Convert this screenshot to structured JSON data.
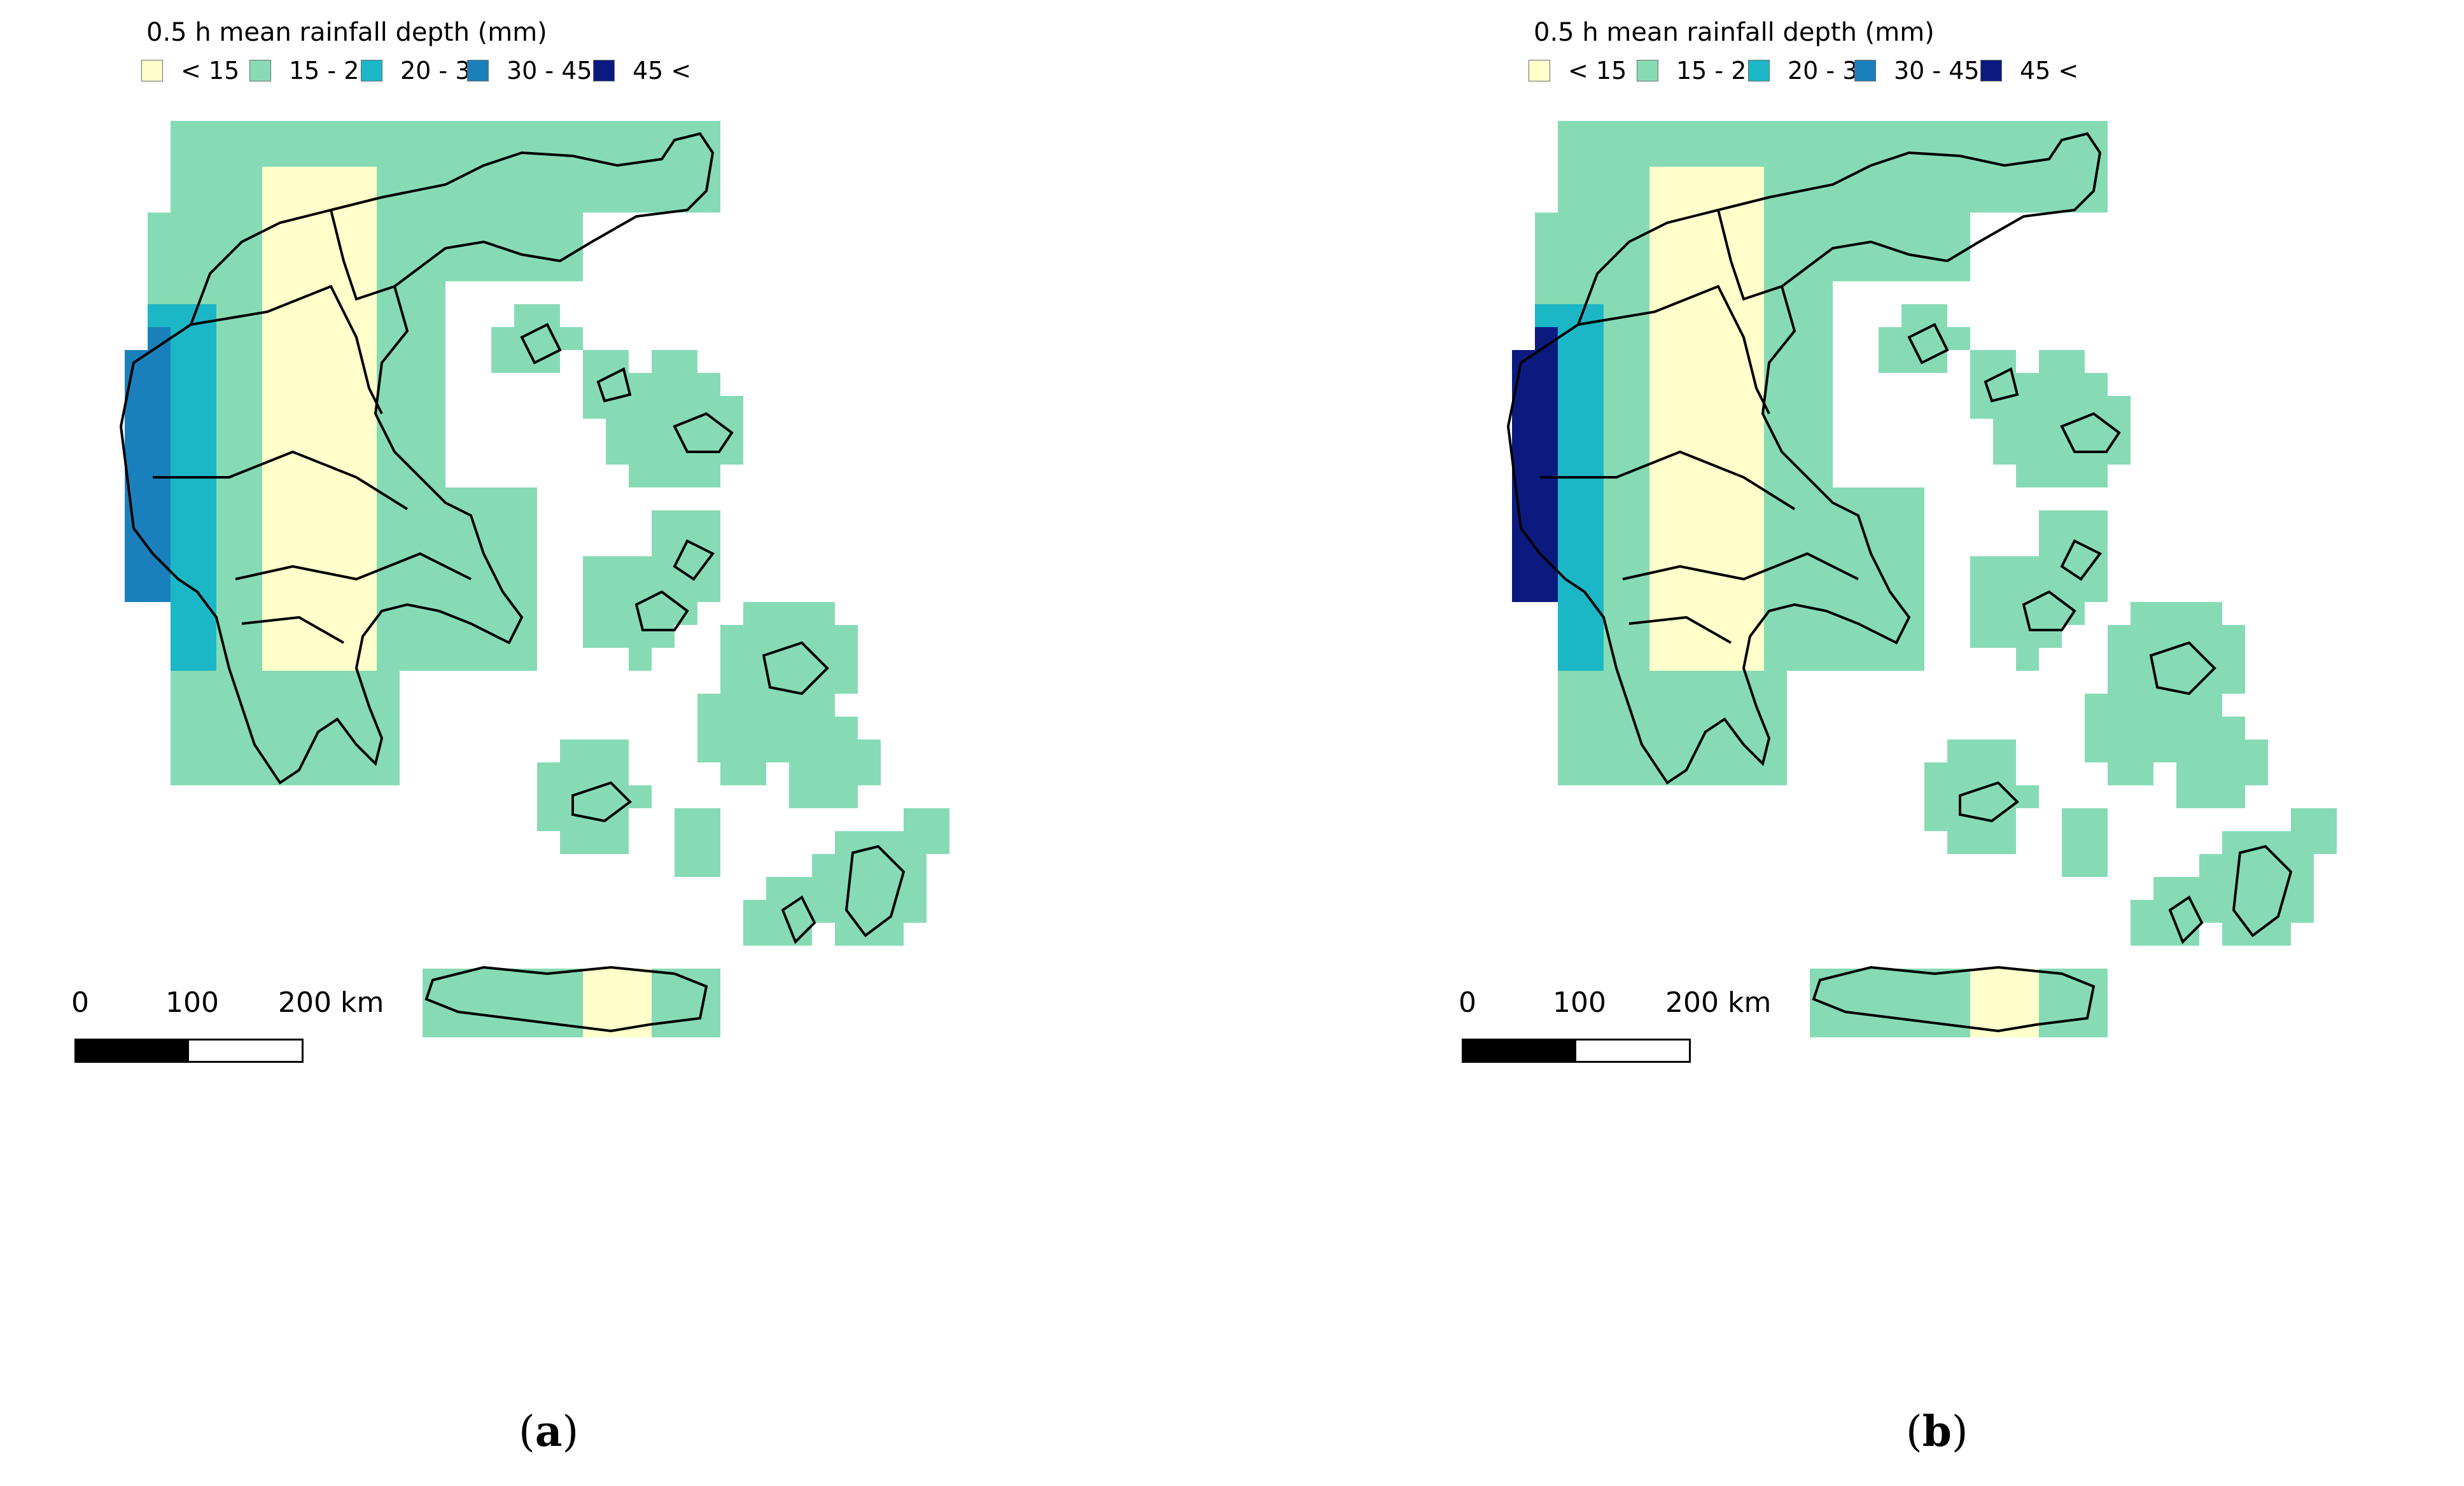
{
  "legend": {
    "title": "0.5 h mean rainfall depth (mm)",
    "classes": [
      {
        "label": "< 15",
        "color": "#ffffcc"
      },
      {
        "label": "15 - 20",
        "color": "#86dbb5"
      },
      {
        "label": "20 - 30",
        "color": "#1cb7c7"
      },
      {
        "label": "30 - 45",
        "color": "#1a80bb"
      },
      {
        "label": "45 <",
        "color": "#0c1a80"
      }
    ]
  },
  "scale_bar": {
    "ticks": [
      "0",
      "100",
      "200 km"
    ]
  },
  "panels": [
    {
      "caption_letter": "a"
    },
    {
      "caption_letter": "b"
    }
  ]
}
